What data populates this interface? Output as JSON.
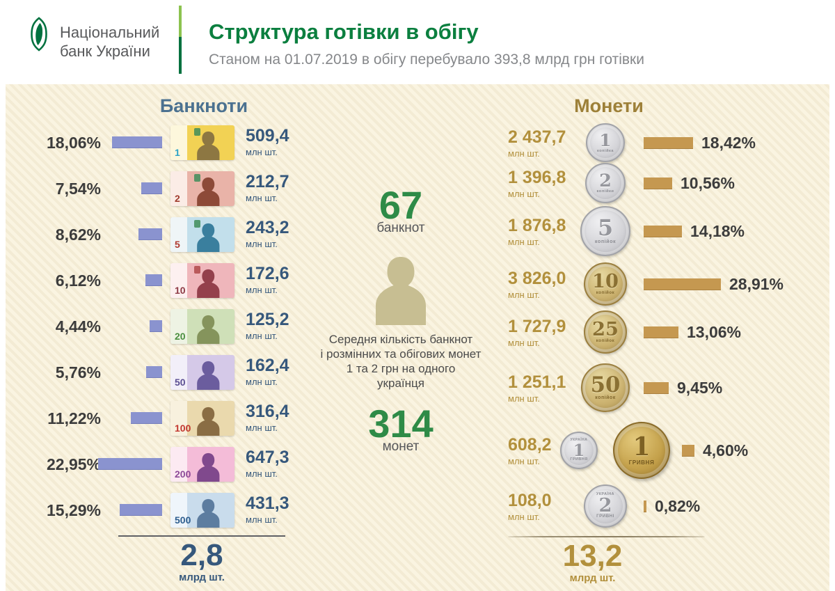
{
  "header": {
    "logo_line1": "Національний",
    "logo_line2": "банк України",
    "title": "Структура готівки в обігу",
    "subtitle": "Станом на 01.07.2019 в обігу перебувало 393,8 млрд  грн готівки"
  },
  "center": {
    "banknotes_count": "67",
    "banknotes_count_label": "банкнот",
    "person_caption": "Середня кількість банкнот\nі  розмінних та обігових монет\n1 та 2 грн на одного\nукраїнця",
    "coins_count": "314",
    "coins_count_label": "монет"
  },
  "colors": {
    "title_green": "#0b7f3f",
    "big_number_green": "#2e8b47",
    "banknote_bar": "#8a93cf",
    "coin_bar": "#c59850",
    "banknote_header": "#4b7190",
    "coin_header": "#9d8038",
    "banknote_value": "#36587c",
    "coin_value": "#b2903c",
    "percent_text": "#3c3c3c"
  },
  "banknotes": {
    "title": "Банкноти",
    "unit": "млн шт.",
    "total_value": "2,8",
    "total_unit": "млрд шт.",
    "items": [
      {
        "denomination": "1",
        "percent": "18,06%",
        "pct": 18.06,
        "value": "509,4",
        "colors": {
          "bg_left": "#fdf7dc",
          "bg": "#f2d254",
          "silhouette": "#8d7742",
          "num": "#2ba3c8",
          "emblem": "#3f8d5a"
        }
      },
      {
        "denomination": "2",
        "percent": "7,54%",
        "pct": 7.54,
        "value": "212,7",
        "colors": {
          "bg_left": "#fbece6",
          "bg": "#e9b3a8",
          "silhouette": "#8d4a38",
          "num": "#a03b2e",
          "emblem": "#3f8d5a"
        }
      },
      {
        "denomination": "5",
        "percent": "8,62%",
        "pct": 8.62,
        "value": "243,2",
        "colors": {
          "bg_left": "#eff5f7",
          "bg": "#c2dfeb",
          "silhouette": "#3a7f9e",
          "num": "#b03a30",
          "emblem": "#3f8d5a"
        }
      },
      {
        "denomination": "10",
        "percent": "6,12%",
        "pct": 6.12,
        "value": "172,6",
        "colors": {
          "bg_left": "#fdf0f0",
          "bg": "#efb6bb",
          "silhouette": "#94404c",
          "num": "#8d3a45",
          "emblem": "#b04a4a"
        }
      },
      {
        "denomination": "20",
        "percent": "4,44%",
        "pct": 4.44,
        "value": "125,2",
        "colors": {
          "bg_left": "#eef3e4",
          "bg": "#cfe0b8",
          "silhouette": "#85945c",
          "num": "#4a8f3f",
          "emblem": null
        }
      },
      {
        "denomination": "50",
        "percent": "5,76%",
        "pct": 5.76,
        "value": "162,4",
        "colors": {
          "bg_left": "#f2eff9",
          "bg": "#d5c9e8",
          "silhouette": "#6b5d9e",
          "num": "#5b4f93",
          "emblem": null
        }
      },
      {
        "denomination": "100",
        "percent": "11,22%",
        "pct": 11.22,
        "value": "316,4",
        "colors": {
          "bg_left": "#f8f1de",
          "bg": "#ead9ad",
          "silhouette": "#8a6d44",
          "num": "#c2362e",
          "emblem": null
        }
      },
      {
        "denomination": "200",
        "percent": "22,95%",
        "pct": 22.95,
        "value": "647,3",
        "colors": {
          "bg_left": "#fceaf2",
          "bg": "#f4bcd8",
          "silhouette": "#80498d",
          "num": "#8d4a99",
          "emblem": null
        }
      },
      {
        "denomination": "500",
        "percent": "15,29%",
        "pct": 15.29,
        "value": "431,3",
        "colors": {
          "bg_left": "#eff5fb",
          "bg": "#c9dcec",
          "silhouette": "#5d7da0",
          "num": "#2e5e8f",
          "emblem": null
        }
      }
    ]
  },
  "coins": {
    "title": "Монети",
    "unit": "млн шт.",
    "total_value": "13,2",
    "total_unit": "млрд шт.",
    "items": [
      {
        "denomination": "1",
        "word": "копійка",
        "metal": "silver",
        "size": 56,
        "value": "2 437,7",
        "percent": "18,42%",
        "pct": 18.42
      },
      {
        "denomination": "2",
        "word": "копійки",
        "metal": "silver",
        "size": 58,
        "value": "1 396,8",
        "percent": "10,56%",
        "pct": 10.56
      },
      {
        "denomination": "5",
        "word": "копійок",
        "metal": "silver",
        "size": 72,
        "value": "1 876,8",
        "percent": "14,18%",
        "pct": 14.18
      },
      {
        "denomination": "10",
        "word": "копійок",
        "metal": "gold",
        "size": 62,
        "value": "3 826,0",
        "percent": "28,91%",
        "pct": 28.91
      },
      {
        "denomination": "25",
        "word": "копійок",
        "metal": "gold",
        "size": 62,
        "value": "1 727,9",
        "percent": "13,06%",
        "pct": 13.06
      },
      {
        "denomination": "50",
        "word": "копійок",
        "metal": "gold",
        "size": 70,
        "value": "1 251,1",
        "percent": "9,45%",
        "pct": 9.45
      },
      {
        "denomination": "1",
        "word": "ГРИВНЯ",
        "metal": "dual",
        "size": 82,
        "value": "608,2",
        "percent": "4,60%",
        "pct": 4.6
      },
      {
        "denomination": "2",
        "word": "ГРИВНІ",
        "metal": "silver",
        "size": 62,
        "value": "108,0",
        "percent": "0,82%",
        "pct": 0.82
      }
    ]
  },
  "chart_data": [
    {
      "type": "bar",
      "orientation": "horizontal",
      "title": "Банкноти",
      "categories": [
        "1 грн",
        "2 грн",
        "5 грн",
        "10 грн",
        "20 грн",
        "50 грн",
        "100 грн",
        "200 грн",
        "500 грн"
      ],
      "series": [
        {
          "name": "Частка, %",
          "values": [
            18.06,
            7.54,
            8.62,
            6.12,
            4.44,
            5.76,
            11.22,
            22.95,
            15.29
          ]
        },
        {
          "name": "Кількість, млн шт.",
          "values": [
            509.4,
            212.7,
            243.2,
            172.6,
            125.2,
            162.4,
            316.4,
            647.3,
            431.3
          ]
        }
      ],
      "total": {
        "value": 2.8,
        "unit": "млрд шт."
      },
      "grid": false,
      "legend": "none"
    },
    {
      "type": "bar",
      "orientation": "horizontal",
      "title": "Монети",
      "categories": [
        "1 коп.",
        "2 коп.",
        "5 коп.",
        "10 коп.",
        "25 коп.",
        "50 коп.",
        "1 грн",
        "2 грн"
      ],
      "series": [
        {
          "name": "Кількість, млн шт.",
          "values": [
            2437.7,
            1396.8,
            1876.8,
            3826.0,
            1727.9,
            1251.1,
            608.2,
            108.0
          ]
        },
        {
          "name": "Частка, %",
          "values": [
            18.42,
            10.56,
            14.18,
            28.91,
            13.06,
            9.45,
            4.6,
            0.82
          ]
        }
      ],
      "total": {
        "value": 13.2,
        "unit": "млрд шт."
      },
      "grid": false,
      "legend": "none"
    }
  ]
}
